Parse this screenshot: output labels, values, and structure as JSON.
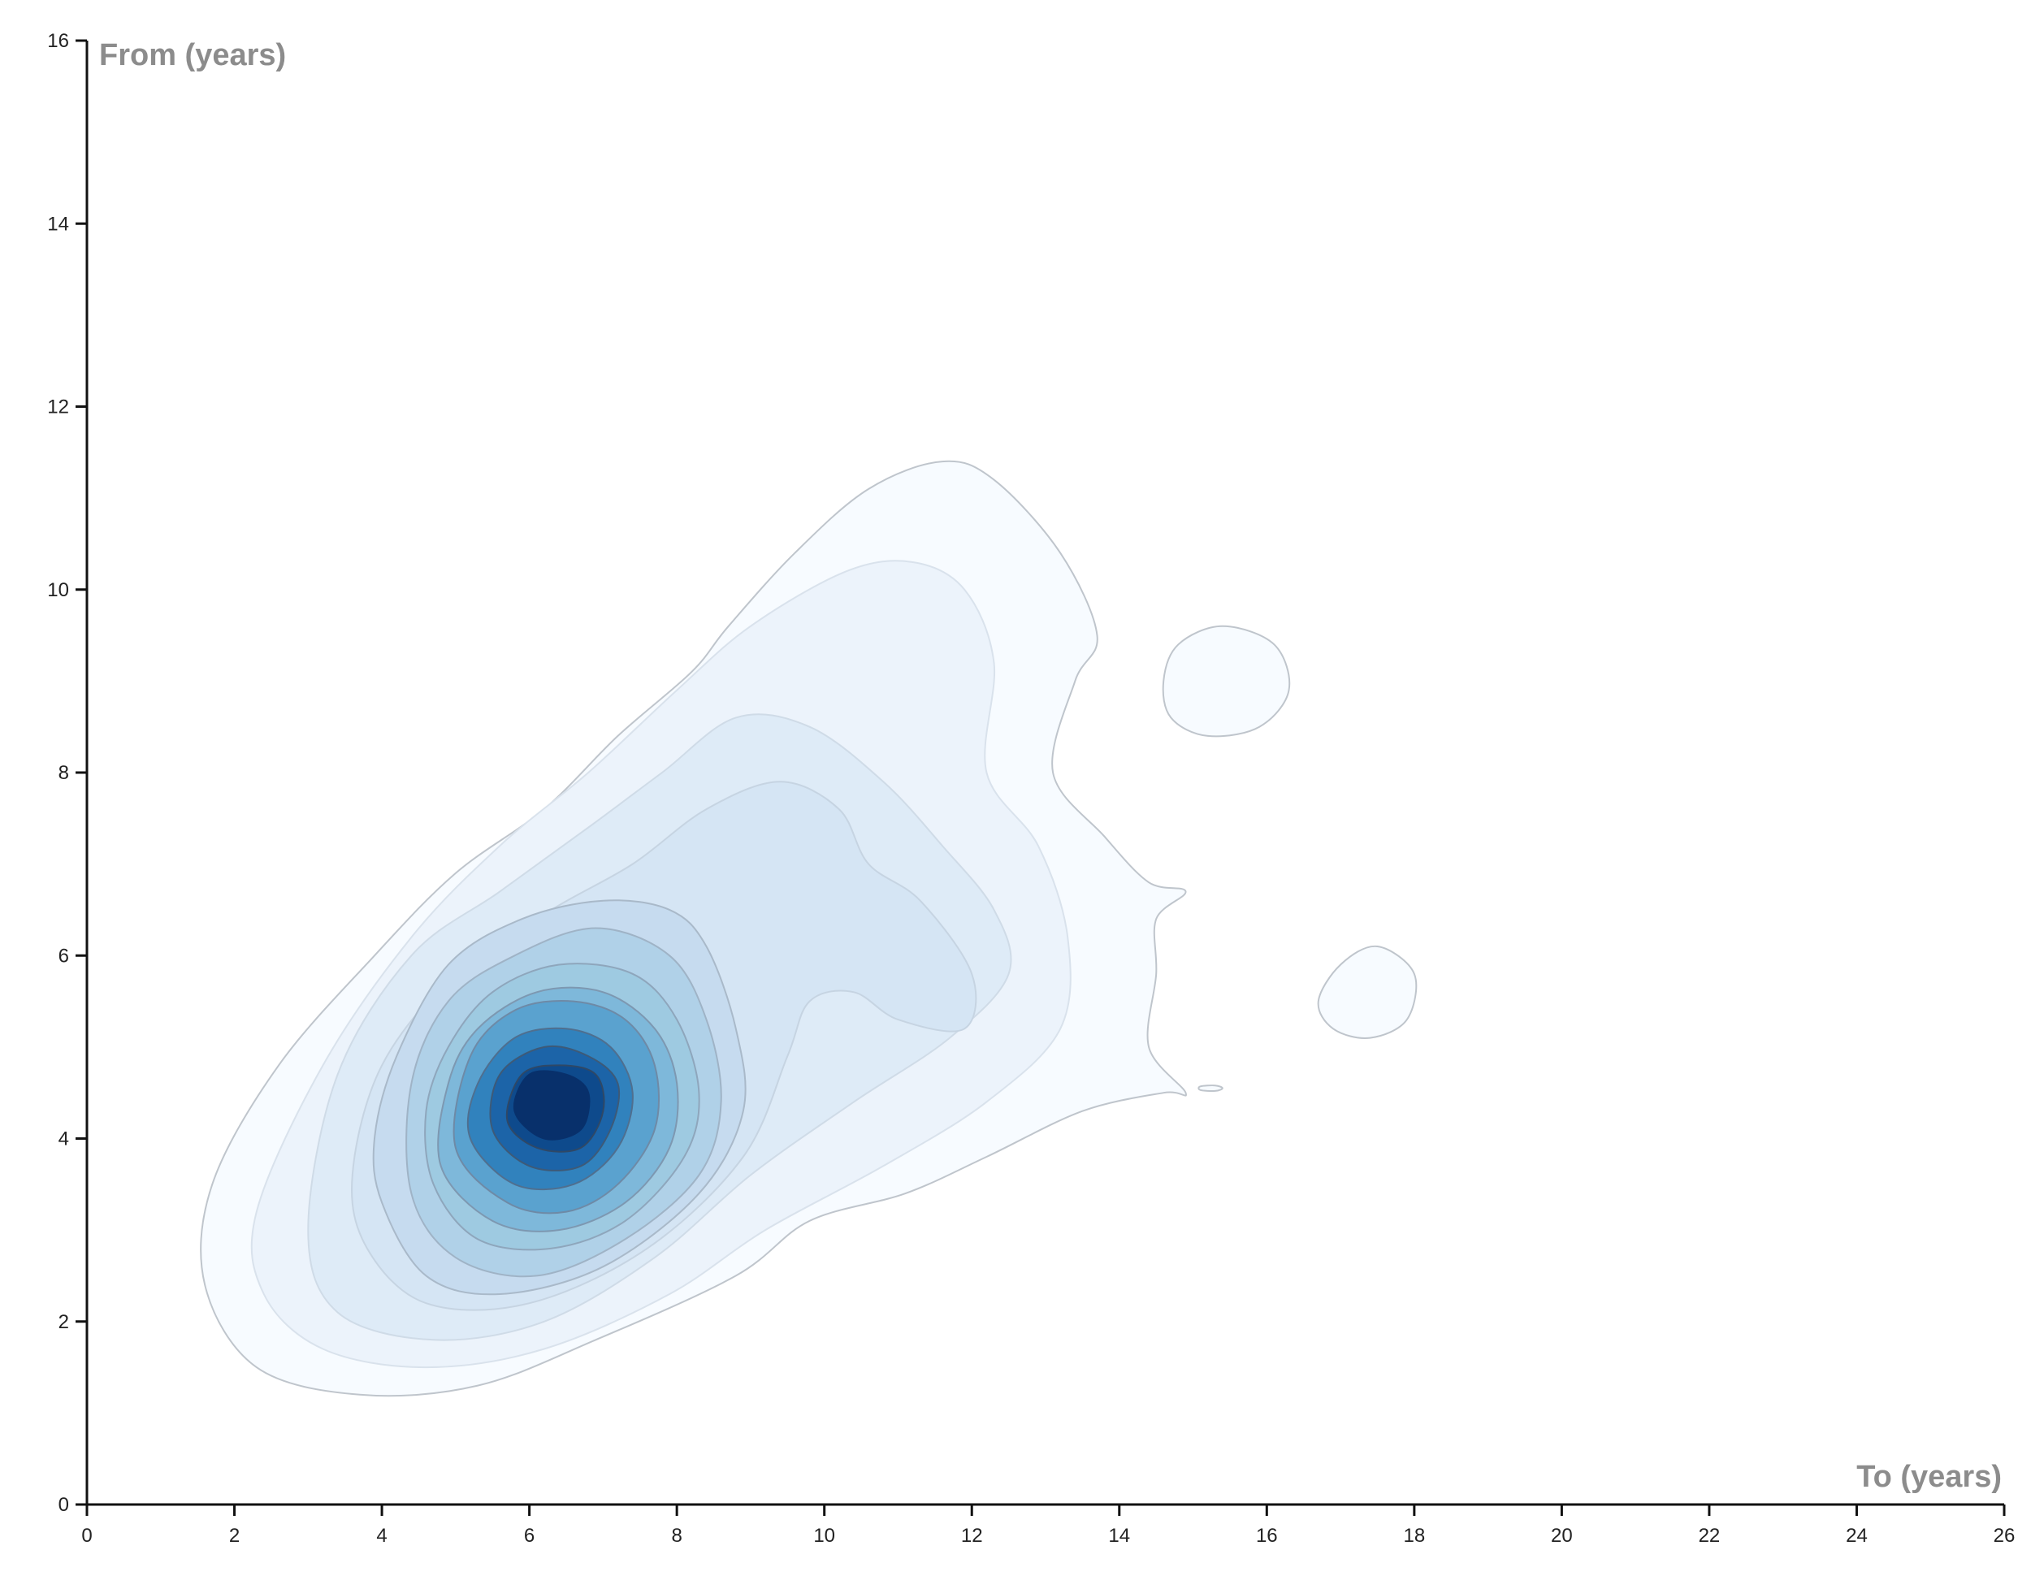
{
  "chart_data": {
    "type": "contour",
    "xlabel": "To (years)",
    "ylabel": "From (years)",
    "xlim": [
      0,
      26
    ],
    "ylim": [
      0,
      16
    ],
    "xticks": [
      0,
      2,
      4,
      6,
      8,
      10,
      12,
      14,
      16,
      18,
      20,
      22,
      24,
      26
    ],
    "yticks": [
      0,
      2,
      4,
      6,
      8,
      10,
      12,
      14,
      16
    ],
    "grid": false,
    "legend": "none",
    "colormap": "Blues",
    "contours": [
      {
        "level": 1,
        "color": "#f7fbff",
        "stroke": "#bfc5cc",
        "points": [
          [
            1.7,
            3.5
          ],
          [
            1.6,
            2.4
          ],
          [
            2.3,
            1.5
          ],
          [
            3.7,
            1.2
          ],
          [
            5.3,
            1.3
          ],
          [
            6.9,
            1.8
          ],
          [
            8.8,
            2.5
          ],
          [
            9.8,
            3.1
          ],
          [
            11.1,
            3.4
          ],
          [
            12.2,
            3.8
          ],
          [
            13.5,
            4.3
          ],
          [
            14.6,
            4.5
          ],
          [
            14.9,
            4.5
          ],
          [
            14.4,
            5.0
          ],
          [
            14.5,
            5.8
          ],
          [
            14.5,
            6.4
          ],
          [
            14.9,
            6.7
          ],
          [
            14.4,
            6.8
          ],
          [
            13.8,
            7.3
          ],
          [
            13.1,
            8.0
          ],
          [
            13.4,
            9.0
          ],
          [
            13.7,
            9.5
          ],
          [
            13.2,
            10.4
          ],
          [
            12.3,
            11.2
          ],
          [
            11.6,
            11.4
          ],
          [
            10.6,
            11.1
          ],
          [
            9.6,
            10.4
          ],
          [
            8.7,
            9.6
          ],
          [
            8.2,
            9.1
          ],
          [
            7.2,
            8.4
          ],
          [
            6.2,
            7.6
          ],
          [
            5.0,
            6.9
          ],
          [
            3.9,
            6.0
          ],
          [
            2.6,
            4.8
          ]
        ]
      },
      {
        "level": 1,
        "color": "#f7fbff",
        "stroke": "#bfc5cc",
        "points": [
          [
            14.6,
            9.0
          ],
          [
            14.8,
            9.4
          ],
          [
            15.4,
            9.6
          ],
          [
            16.1,
            9.4
          ],
          [
            16.3,
            8.9
          ],
          [
            15.9,
            8.5
          ],
          [
            15.2,
            8.4
          ],
          [
            14.7,
            8.6
          ]
        ]
      },
      {
        "level": 1,
        "color": "#f7fbff",
        "stroke": "#bfc5cc",
        "points": [
          [
            16.7,
            5.5
          ],
          [
            17.0,
            5.9
          ],
          [
            17.5,
            6.1
          ],
          [
            18.0,
            5.8
          ],
          [
            17.9,
            5.3
          ],
          [
            17.4,
            5.1
          ],
          [
            16.9,
            5.2
          ]
        ]
      },
      {
        "level": 1,
        "color": "#f7fbff",
        "stroke": "#bfc5cc",
        "points": [
          [
            15.1,
            4.57
          ],
          [
            15.3,
            4.58
          ],
          [
            15.4,
            4.55
          ],
          [
            15.3,
            4.52
          ],
          [
            15.1,
            4.53
          ]
        ]
      },
      {
        "level": 2,
        "color": "#ecf3fb",
        "stroke": "#d9e2ec",
        "points": [
          [
            2.3,
            3.2
          ],
          [
            2.4,
            2.3
          ],
          [
            3.2,
            1.7
          ],
          [
            4.6,
            1.5
          ],
          [
            6.2,
            1.7
          ],
          [
            7.9,
            2.3
          ],
          [
            9.2,
            3.0
          ],
          [
            10.8,
            3.7
          ],
          [
            12.2,
            4.4
          ],
          [
            13.2,
            5.2
          ],
          [
            13.3,
            6.2
          ],
          [
            12.9,
            7.2
          ],
          [
            12.2,
            8.0
          ],
          [
            12.3,
            9.2
          ],
          [
            11.9,
            10.0
          ],
          [
            11.2,
            10.3
          ],
          [
            10.3,
            10.2
          ],
          [
            9.0,
            9.6
          ],
          [
            8.0,
            8.9
          ],
          [
            6.8,
            8.0
          ],
          [
            5.6,
            7.2
          ],
          [
            4.4,
            6.2
          ],
          [
            3.2,
            4.8
          ]
        ]
      },
      {
        "level": 3,
        "color": "#deebf7",
        "stroke": "#cfdbe7",
        "points": [
          [
            3.0,
            3.0
          ],
          [
            3.4,
            2.1
          ],
          [
            4.7,
            1.8
          ],
          [
            6.2,
            2.0
          ],
          [
            7.7,
            2.7
          ],
          [
            9.0,
            3.6
          ],
          [
            10.4,
            4.4
          ],
          [
            11.7,
            5.1
          ],
          [
            12.5,
            5.8
          ],
          [
            12.3,
            6.5
          ],
          [
            11.6,
            7.2
          ],
          [
            10.8,
            7.9
          ],
          [
            9.8,
            8.5
          ],
          [
            8.8,
            8.6
          ],
          [
            7.8,
            8.0
          ],
          [
            6.8,
            7.4
          ],
          [
            5.6,
            6.7
          ],
          [
            4.4,
            6.0
          ],
          [
            3.4,
            4.7
          ]
        ]
      },
      {
        "level": 4,
        "color": "#d5e5f4",
        "stroke": "#c6d4e2",
        "points": [
          [
            3.8,
            2.8
          ],
          [
            4.6,
            2.2
          ],
          [
            6.0,
            2.2
          ],
          [
            7.6,
            2.8
          ],
          [
            8.9,
            3.8
          ],
          [
            9.5,
            4.9
          ],
          [
            9.8,
            5.5
          ],
          [
            10.4,
            5.6
          ],
          [
            11.0,
            5.3
          ],
          [
            11.9,
            5.2
          ],
          [
            12.0,
            5.8
          ],
          [
            11.3,
            6.6
          ],
          [
            10.6,
            7.0
          ],
          [
            10.2,
            7.6
          ],
          [
            9.4,
            7.9
          ],
          [
            8.4,
            7.6
          ],
          [
            7.4,
            7.0
          ],
          [
            6.3,
            6.5
          ],
          [
            5.0,
            5.8
          ],
          [
            4.0,
            4.8
          ],
          [
            3.6,
            3.6
          ]
        ]
      },
      {
        "level": 5,
        "color": "#c6dbef",
        "stroke": "#a9b9c9",
        "points": [
          [
            4.0,
            3.3
          ],
          [
            4.6,
            2.5
          ],
          [
            5.6,
            2.3
          ],
          [
            7.0,
            2.6
          ],
          [
            8.3,
            3.4
          ],
          [
            8.9,
            4.3
          ],
          [
            8.8,
            5.2
          ],
          [
            8.4,
            6.1
          ],
          [
            7.9,
            6.5
          ],
          [
            7.0,
            6.6
          ],
          [
            5.9,
            6.4
          ],
          [
            4.9,
            5.9
          ],
          [
            4.2,
            4.9
          ],
          [
            3.9,
            4.0
          ]
        ]
      },
      {
        "level": 6,
        "color": "#b0d1e8",
        "stroke": "#9fb3c6",
        "points": [
          [
            4.4,
            3.4
          ],
          [
            5.0,
            2.7
          ],
          [
            6.1,
            2.5
          ],
          [
            7.3,
            2.9
          ],
          [
            8.3,
            3.6
          ],
          [
            8.6,
            4.4
          ],
          [
            8.4,
            5.3
          ],
          [
            7.9,
            6.0
          ],
          [
            6.9,
            6.3
          ],
          [
            5.8,
            6.0
          ],
          [
            4.9,
            5.5
          ],
          [
            4.4,
            4.6
          ]
        ]
      },
      {
        "level": 7,
        "color": "#9ecae1",
        "stroke": "#8ea6bc",
        "points": [
          [
            4.7,
            3.5
          ],
          [
            5.3,
            2.9
          ],
          [
            6.3,
            2.8
          ],
          [
            7.3,
            3.1
          ],
          [
            8.1,
            3.8
          ],
          [
            8.3,
            4.5
          ],
          [
            8.0,
            5.3
          ],
          [
            7.4,
            5.8
          ],
          [
            6.4,
            5.9
          ],
          [
            5.5,
            5.6
          ],
          [
            4.9,
            5.0
          ],
          [
            4.6,
            4.3
          ]
        ]
      },
      {
        "level": 8,
        "color": "#7eb8da",
        "stroke": "#7d98b1",
        "points": [
          [
            4.8,
            3.7
          ],
          [
            5.5,
            3.1
          ],
          [
            6.4,
            3.0
          ],
          [
            7.3,
            3.3
          ],
          [
            7.9,
            3.9
          ],
          [
            8.0,
            4.6
          ],
          [
            7.7,
            5.2
          ],
          [
            7.0,
            5.6
          ],
          [
            6.1,
            5.6
          ],
          [
            5.3,
            5.2
          ],
          [
            4.9,
            4.6
          ]
        ]
      },
      {
        "level": 9,
        "color": "#5aa2cf",
        "stroke": "#6e8aa6",
        "points": [
          [
            5.0,
            3.9
          ],
          [
            5.7,
            3.3
          ],
          [
            6.5,
            3.2
          ],
          [
            7.2,
            3.5
          ],
          [
            7.7,
            4.1
          ],
          [
            7.7,
            4.8
          ],
          [
            7.3,
            5.3
          ],
          [
            6.6,
            5.5
          ],
          [
            5.8,
            5.4
          ],
          [
            5.2,
            4.9
          ]
        ]
      },
      {
        "level": 10,
        "color": "#3182bd",
        "stroke": "#4f6f8f",
        "points": [
          [
            5.2,
            4.0
          ],
          [
            5.8,
            3.5
          ],
          [
            6.6,
            3.5
          ],
          [
            7.2,
            3.9
          ],
          [
            7.4,
            4.5
          ],
          [
            7.1,
            5.0
          ],
          [
            6.5,
            5.2
          ],
          [
            5.8,
            5.1
          ],
          [
            5.3,
            4.6
          ]
        ]
      },
      {
        "level": 11,
        "color": "#1c64a8",
        "stroke": "#3d5a78",
        "points": [
          [
            5.5,
            4.1
          ],
          [
            6.0,
            3.7
          ],
          [
            6.7,
            3.7
          ],
          [
            7.1,
            4.1
          ],
          [
            7.2,
            4.6
          ],
          [
            6.8,
            4.9
          ],
          [
            6.2,
            5.0
          ],
          [
            5.6,
            4.7
          ]
        ]
      },
      {
        "level": 12,
        "color": "#0e4a8c",
        "stroke": "#2f4866",
        "points": [
          [
            5.7,
            4.2
          ],
          [
            6.1,
            3.9
          ],
          [
            6.7,
            3.9
          ],
          [
            7.0,
            4.3
          ],
          [
            6.9,
            4.7
          ],
          [
            6.4,
            4.8
          ],
          [
            5.9,
            4.7
          ]
        ]
      },
      {
        "level": 13,
        "color": "#08306b",
        "stroke": "#08306b",
        "points": [
          [
            5.8,
            4.3
          ],
          [
            6.2,
            4.0
          ],
          [
            6.7,
            4.1
          ],
          [
            6.8,
            4.5
          ],
          [
            6.5,
            4.7
          ],
          [
            6.0,
            4.7
          ]
        ]
      }
    ]
  }
}
